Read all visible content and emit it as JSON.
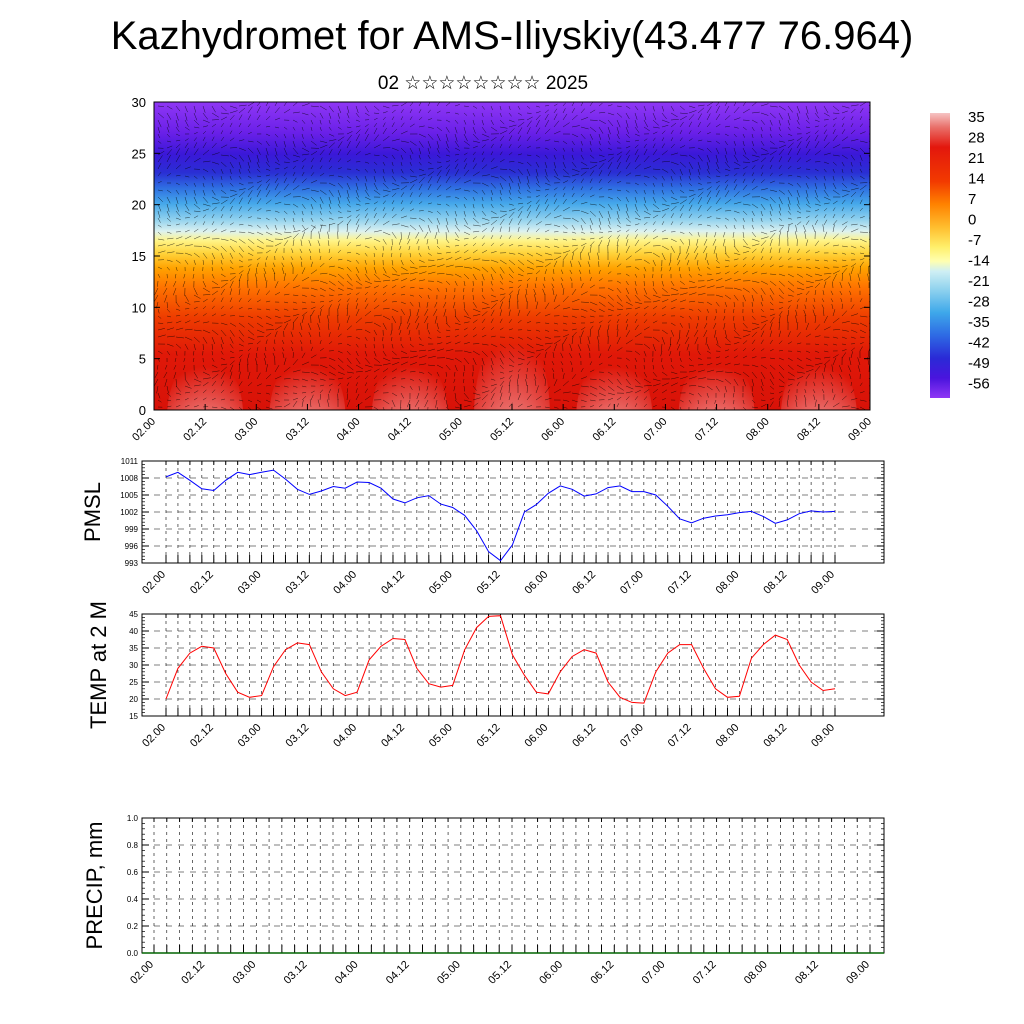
{
  "title": "Kazhydromet for AMS-Iliyskiy(43.477 76.964)",
  "subtitle": "02 ☆☆☆☆☆☆☆☆ 2025",
  "time_labels": [
    "02.00",
    "02.12",
    "03.00",
    "03.12",
    "04.00",
    "04.12",
    "05.00",
    "05.12",
    "06.00",
    "06.12",
    "07.00",
    "07.12",
    "08.00",
    "08.12",
    "09.00"
  ],
  "colorbar": {
    "labels": [
      "35",
      "28",
      "21",
      "14",
      "7",
      "0",
      "-7",
      "-14",
      "-21",
      "-28",
      "-35",
      "-42",
      "-49",
      "-56"
    ],
    "colors": [
      "#f4b6b6",
      "#e43a2e",
      "#e10e00",
      "#ff6a00",
      "#ffa500",
      "#ffd34d",
      "#ffff7a",
      "#c9ecf2",
      "#78c8ec",
      "#35a2e8",
      "#2e5ae2",
      "#2d2ad4",
      "#5a10e8",
      "#8a2ef2"
    ]
  },
  "chart_data": [
    {
      "type": "heatmap",
      "title": "",
      "xlabel": "",
      "ylabel": "",
      "ylim": [
        0,
        30
      ],
      "yticks": [
        "0",
        "5",
        "10",
        "15",
        "20",
        "25",
        "30"
      ],
      "x": [
        "02.00",
        "02.12",
        "03.00",
        "03.12",
        "04.00",
        "04.12",
        "05.00",
        "05.12",
        "06.00",
        "06.12",
        "07.00",
        "07.12",
        "08.00",
        "08.12",
        "09.00"
      ],
      "levels": [
        35,
        28,
        21,
        14,
        7,
        0,
        -7,
        -14,
        -21,
        -28,
        -35,
        -42,
        -49,
        -56
      ],
      "overlay": "wind vectors",
      "grid": false
    },
    {
      "type": "line",
      "ylabel": "PMSL",
      "ylim": [
        993,
        1011
      ],
      "yticks": [
        "993",
        "996",
        "999",
        "1002",
        "1005",
        "1008",
        "1011"
      ],
      "x": [
        "02.00",
        "02.03",
        "02.06",
        "02.09",
        "02.12",
        "02.15",
        "02.18",
        "02.21",
        "03.00",
        "03.03",
        "03.06",
        "03.09",
        "03.12",
        "03.15",
        "03.18",
        "03.21",
        "04.00",
        "04.03",
        "04.06",
        "04.09",
        "04.12",
        "04.15",
        "04.18",
        "04.21",
        "05.00",
        "05.03",
        "05.06",
        "05.09",
        "05.12",
        "05.15",
        "05.18",
        "05.21",
        "06.00",
        "06.03",
        "06.06",
        "06.09",
        "06.12",
        "06.15",
        "06.18",
        "06.21",
        "07.00",
        "07.03",
        "07.06",
        "07.09",
        "07.12",
        "07.15",
        "07.18",
        "07.21",
        "08.00",
        "08.03",
        "08.06",
        "08.09",
        "08.12",
        "08.15",
        "08.18",
        "08.21",
        "09.00"
      ],
      "series": [
        {
          "color": "#0000ff",
          "values": [
            1008.2,
            1009.0,
            1007.6,
            1006.1,
            1005.8,
            1007.6,
            1009.0,
            1008.6,
            1009.0,
            1009.4,
            1007.8,
            1006.0,
            1005.1,
            1005.7,
            1006.5,
            1006.2,
            1007.3,
            1007.2,
            1006.2,
            1004.3,
            1003.6,
            1004.5,
            1004.9,
            1003.4,
            1002.8,
            1001.4,
            998.7,
            995.0,
            993.4,
            996.2,
            1002.0,
            1003.3,
            1005.3,
            1006.6,
            1006.0,
            1004.8,
            1005.2,
            1006.3,
            1006.6,
            1005.6,
            1005.6,
            1005.0,
            1003.0,
            1000.8,
            1000.1,
            1000.9,
            1001.3,
            1001.5,
            1001.9,
            1002.1,
            1001.2,
            1000.0,
            1000.6,
            1001.7,
            1002.2,
            1002.0,
            1002.1
          ]
        }
      ],
      "grid": true
    },
    {
      "type": "line",
      "ylabel": "TEMP at 2 M",
      "ylim": [
        15,
        45
      ],
      "yticks": [
        "15",
        "20",
        "25",
        "30",
        "35",
        "40",
        "45"
      ],
      "x": [
        "02.00",
        "02.03",
        "02.06",
        "02.09",
        "02.12",
        "02.15",
        "02.18",
        "02.21",
        "03.00",
        "03.03",
        "03.06",
        "03.09",
        "03.12",
        "03.15",
        "03.18",
        "03.21",
        "04.00",
        "04.03",
        "04.06",
        "04.09",
        "04.12",
        "04.15",
        "04.18",
        "04.21",
        "05.00",
        "05.03",
        "05.06",
        "05.09",
        "05.12",
        "05.15",
        "05.18",
        "05.21",
        "06.00",
        "06.03",
        "06.06",
        "06.09",
        "06.12",
        "06.15",
        "06.18",
        "06.21",
        "07.00",
        "07.03",
        "07.06",
        "07.09",
        "07.12",
        "07.15",
        "07.18",
        "07.21",
        "08.00",
        "08.03",
        "08.06",
        "08.09",
        "08.12",
        "08.15",
        "08.18",
        "08.21",
        "09.00"
      ],
      "series": [
        {
          "color": "#ff0000",
          "values": [
            20.0,
            29.0,
            33.5,
            35.5,
            35.0,
            27.5,
            22.0,
            20.5,
            21.0,
            29.5,
            34.5,
            36.5,
            36.0,
            28.0,
            23.0,
            21.0,
            22.0,
            31.5,
            35.5,
            37.8,
            37.5,
            29.0,
            24.5,
            23.5,
            24.0,
            34.5,
            41.0,
            44.3,
            44.5,
            33.0,
            27.0,
            22.0,
            21.5,
            28.0,
            32.5,
            34.5,
            33.5,
            25.0,
            20.5,
            19.0,
            18.8,
            28.0,
            33.5,
            36.0,
            36.0,
            29.0,
            23.0,
            20.5,
            20.8,
            32.0,
            36.0,
            38.8,
            37.5,
            30.0,
            25.0,
            22.5,
            23.0
          ]
        }
      ],
      "grid": true
    },
    {
      "type": "bar",
      "ylabel": "PRECIP, mm",
      "ylim": [
        0.0,
        1.0
      ],
      "yticks": [
        "0.0",
        "0.2",
        "0.4",
        "0.6",
        "0.8",
        "1.0"
      ],
      "x": [
        "02.00",
        "02.12",
        "03.00",
        "03.12",
        "04.00",
        "04.12",
        "05.00",
        "05.12",
        "06.00",
        "06.12",
        "07.00",
        "07.12",
        "08.00",
        "08.12",
        "09.00"
      ],
      "values": [
        0,
        0,
        0,
        0,
        0,
        0,
        0,
        0,
        0,
        0,
        0,
        0,
        0,
        0,
        0
      ],
      "grid": true
    }
  ]
}
